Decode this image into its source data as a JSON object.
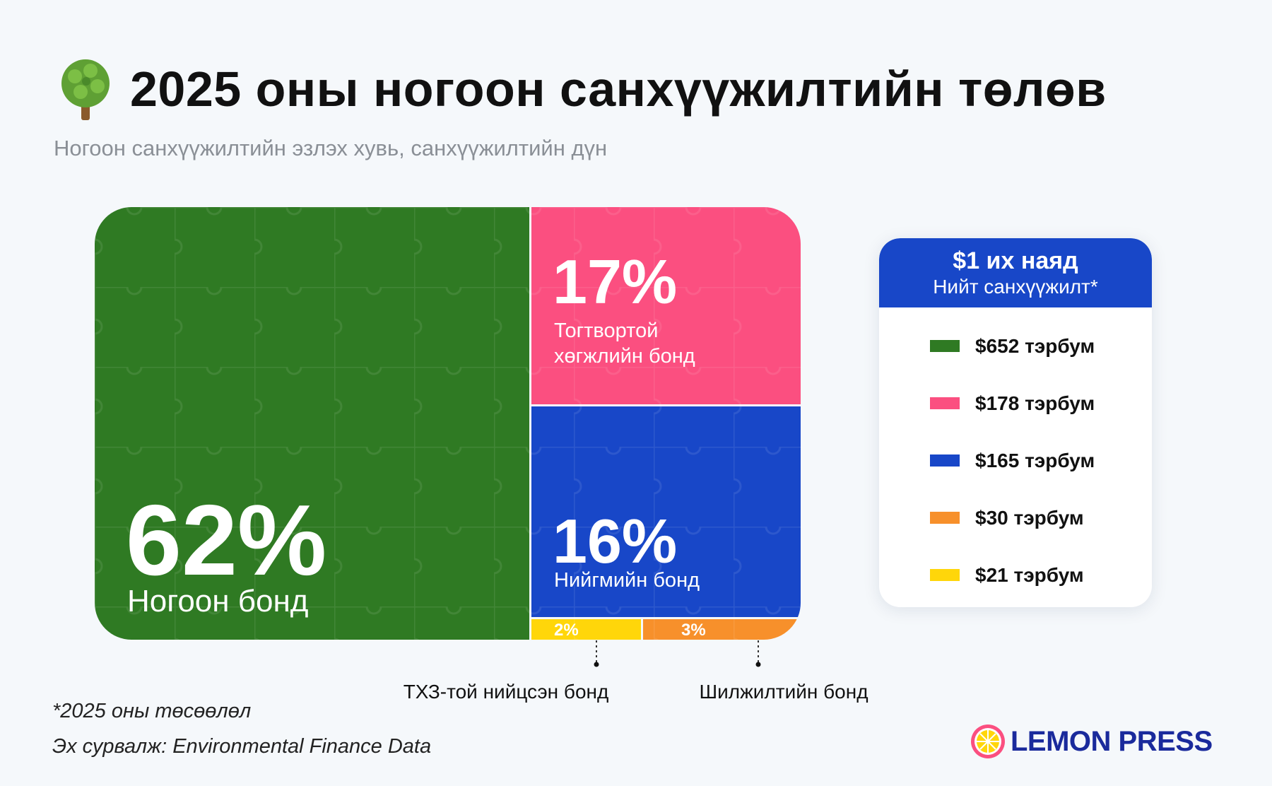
{
  "header": {
    "title": "2025 оны ногоон санхүүжилтийн төлөв",
    "subtitle": "Ногоон санхүүжилтийн эзлэх хувь, санхүүжилтийн дүн",
    "icon": "tree-icon"
  },
  "chart_data": {
    "type": "treemap",
    "segments": [
      {
        "percent_label": "62%",
        "share": 62,
        "label": "Ногоон бонд",
        "amount": "$652 тэрбум",
        "color": "#2f7a23"
      },
      {
        "percent_label": "17%",
        "share": 17,
        "label": "Тогтвортой хөгжлийн бонд",
        "amount": "$178 тэрбум",
        "color": "#fb4f80"
      },
      {
        "percent_label": "16%",
        "share": 16,
        "label": "Нийгмийн бонд",
        "amount": "$165 тэрбум",
        "color": "#1847c8"
      },
      {
        "percent_label": "3%",
        "share": 3,
        "label": "Шилжилтийн бонд",
        "amount": "$30 тэрбум",
        "color": "#f7902b"
      },
      {
        "percent_label": "2%",
        "share": 2,
        "label": "ТХЗ-той нийцсэн бонд",
        "amount": "$21 тэрбум",
        "color": "#ffd60a"
      }
    ],
    "callouts": {
      "yellow": "ТХЗ-той нийцсэн бонд",
      "orange": "Шилжилтийн бонд"
    }
  },
  "legend": {
    "total_value": "$1 их наяд",
    "total_label": "Нийт санхүүжилт*",
    "items": [
      {
        "value": "$652 тэрбум",
        "color": "#2f7a23"
      },
      {
        "value": "$178 тэрбум",
        "color": "#fb4f80"
      },
      {
        "value": "$165 тэрбум",
        "color": "#1847c8"
      },
      {
        "value": "$30 тэрбум",
        "color": "#f7902b"
      },
      {
        "value": "$21 тэрбум",
        "color": "#ffd60a"
      }
    ]
  },
  "footer": {
    "note": "*2025 оны төсөөлөл",
    "source": "Эх сурвалж: Environmental Finance Data",
    "logo_text": "LEMON PRESS"
  }
}
